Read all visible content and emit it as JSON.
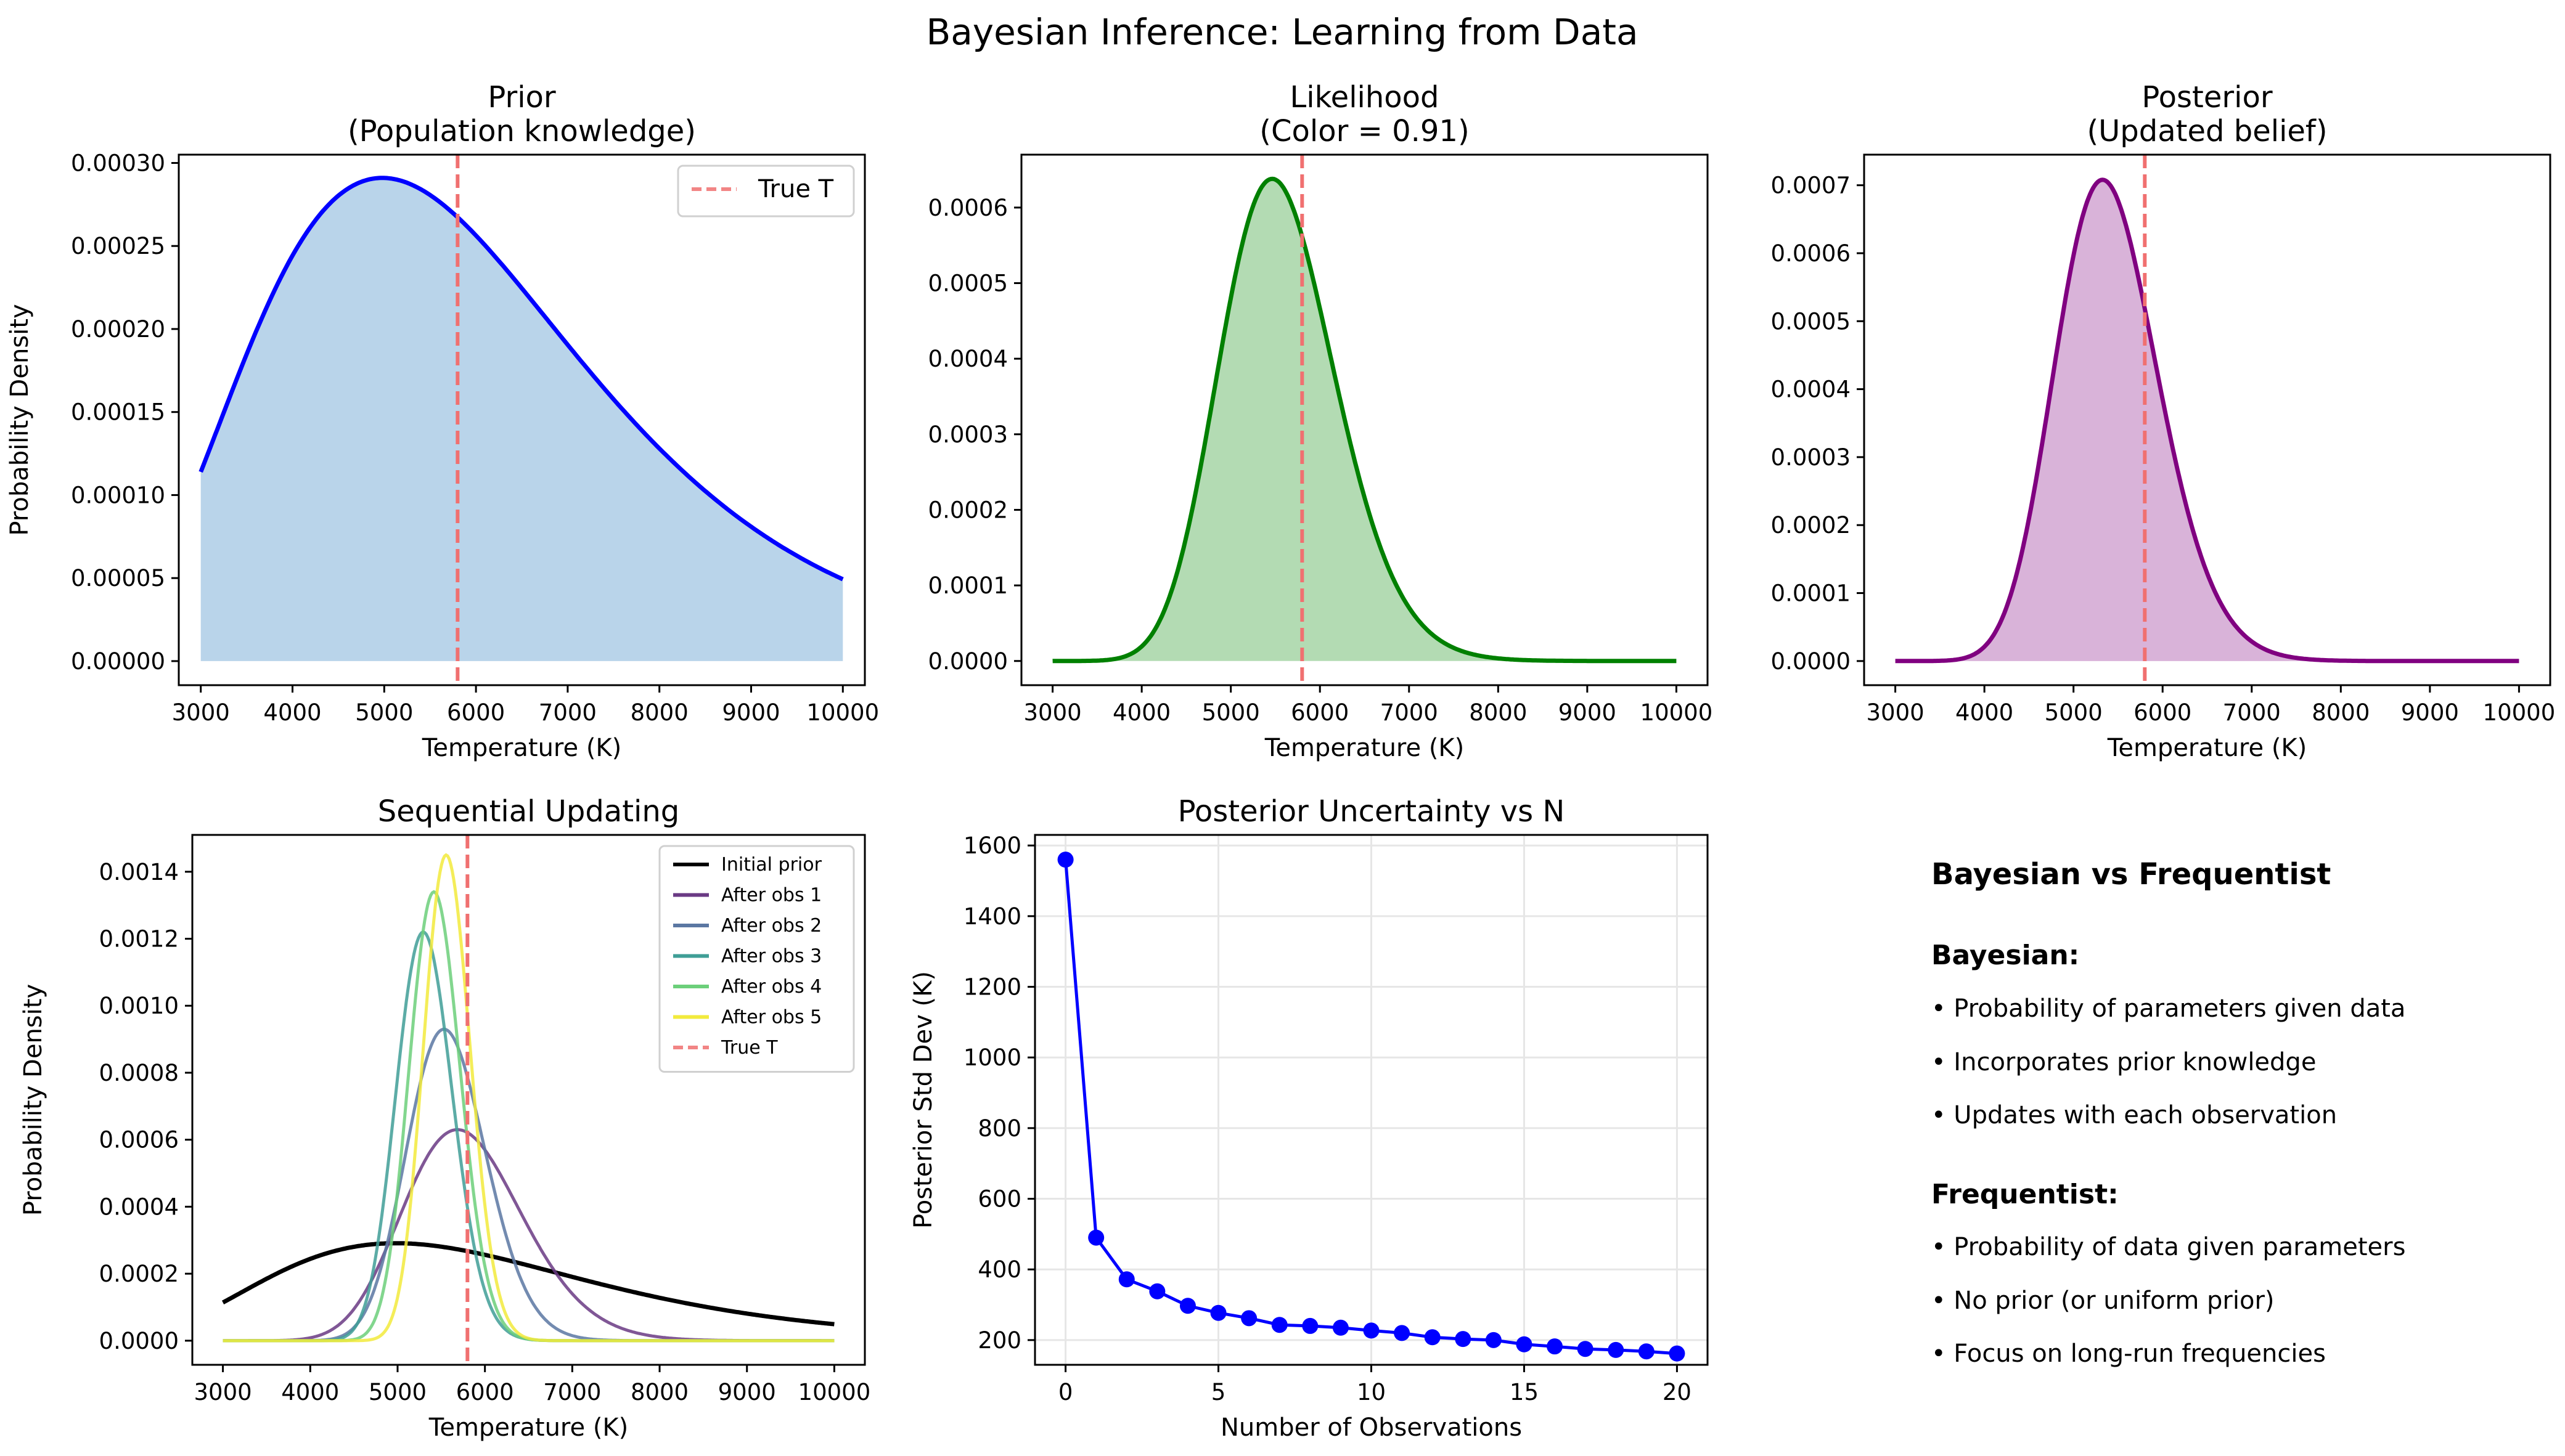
{
  "suptitle": "Bayesian Inference: Learning from Data",
  "colors": {
    "prior": "#0000ff",
    "prior_fill": "#b9d4ea",
    "likelihood": "#008000",
    "likelihood_fill": "#b3dbb3",
    "posterior": "#800080",
    "posterior_fill": "#d9b3d9",
    "true_t": "#f07070",
    "uncertainty": "#0000ff",
    "grid": "#e6e6e6"
  },
  "chart_data": [
    {
      "type": "area",
      "title": "Prior\n(Population knowledge)",
      "xlabel": "Temperature (K)",
      "ylabel": "Probability Density",
      "xlim": [
        2760,
        10240
      ],
      "ylim": [
        -1.45e-05,
        0.000305
      ],
      "xticks": [
        3000,
        4000,
        5000,
        6000,
        7000,
        8000,
        9000,
        10000
      ],
      "yticks": [
        "0.00000",
        "0.00005",
        "0.00010",
        "0.00015",
        "0.00020",
        "0.00025",
        "0.00030"
      ],
      "ytick_values": [
        0,
        5e-05,
        0.0001,
        0.00015,
        0.0002,
        0.00025,
        0.0003
      ],
      "curve": {
        "kind": "lognormal",
        "mu": 8.65,
        "sigma": 0.37,
        "scale": 0.000291,
        "color": "#0000ff"
      },
      "true_t": 5800,
      "legend": [
        {
          "label": "True T",
          "style": "dashed",
          "color": "#f07070"
        }
      ],
      "legend_position": "upper right"
    },
    {
      "type": "area",
      "title": "Likelihood\n(Color = 0.91)",
      "xlabel": "Temperature (K)",
      "ylabel": "",
      "xlim": [
        2650,
        10350
      ],
      "ylim": [
        -3.2e-05,
        0.00067
      ],
      "xticks": [
        3000,
        4000,
        5000,
        6000,
        7000,
        8000,
        9000,
        10000
      ],
      "yticks": [
        "0.0000",
        "0.0001",
        "0.0002",
        "0.0003",
        "0.0004",
        "0.0005",
        "0.0006"
      ],
      "ytick_values": [
        0,
        0.0001,
        0.0002,
        0.0003,
        0.0004,
        0.0005,
        0.0006
      ],
      "curve": {
        "kind": "lognormal",
        "mu": 8.62,
        "sigma": 0.118,
        "scale": 0.000638,
        "color": "#008000"
      },
      "true_t": 5800
    },
    {
      "type": "area",
      "title": "Posterior\n(Updated belief)",
      "xlabel": "Temperature (K)",
      "ylabel": "",
      "xlim": [
        2650,
        10350
      ],
      "ylim": [
        -3.55e-05,
        0.000745
      ],
      "xticks": [
        3000,
        4000,
        5000,
        6000,
        7000,
        8000,
        9000,
        10000
      ],
      "yticks": [
        "0.0000",
        "0.0001",
        "0.0002",
        "0.0003",
        "0.0004",
        "0.0005",
        "0.0006",
        "0.0007"
      ],
      "ytick_values": [
        0,
        0.0001,
        0.0002,
        0.0003,
        0.0004,
        0.0005,
        0.0006,
        0.0007
      ],
      "curve": {
        "kind": "lognormal",
        "mu": 8.592,
        "sigma": 0.108,
        "scale": 0.000708,
        "color": "#800080"
      },
      "true_t": 5800
    },
    {
      "type": "line",
      "title": "Sequential Updating",
      "xlabel": "Temperature (K)",
      "ylabel": "Probability Density",
      "xlim": [
        2650,
        10350
      ],
      "ylim": [
        -7.2e-05,
        0.00151
      ],
      "xticks": [
        3000,
        4000,
        5000,
        6000,
        7000,
        8000,
        9000,
        10000
      ],
      "yticks": [
        "0.0000",
        "0.0002",
        "0.0004",
        "0.0006",
        "0.0008",
        "0.0010",
        "0.0012",
        "0.0014"
      ],
      "ytick_values": [
        0,
        0.0002,
        0.0004,
        0.0006,
        0.0008,
        0.001,
        0.0012,
        0.0014
      ],
      "series": [
        {
          "name": "Initial prior",
          "kind": "lognormal",
          "mu": 8.65,
          "sigma": 0.37,
          "scale": 0.000291,
          "color": "#000000",
          "width": 7
        },
        {
          "name": "After obs 1",
          "kind": "lognormal",
          "mu": 8.66,
          "sigma": 0.12,
          "scale": 0.00063,
          "color": "#6a3a84",
          "width": 5
        },
        {
          "name": "After obs 2",
          "kind": "lognormal",
          "mu": 8.625,
          "sigma": 0.082,
          "scale": 0.00093,
          "color": "#5b77a2",
          "width": 5
        },
        {
          "name": "After obs 3",
          "kind": "lognormal",
          "mu": 8.578,
          "sigma": 0.061,
          "scale": 0.00122,
          "color": "#3f9e96",
          "width": 5
        },
        {
          "name": "After obs 4",
          "kind": "lognormal",
          "mu": 8.6,
          "sigma": 0.054,
          "scale": 0.00134,
          "color": "#6ccf7a",
          "width": 5
        },
        {
          "name": "After obs 5",
          "kind": "lognormal",
          "mu": 8.625,
          "sigma": 0.048,
          "scale": 0.00145,
          "color": "#f2ea3c",
          "width": 5
        }
      ],
      "true_t": 5800,
      "legend": [
        {
          "label": "Initial prior",
          "style": "solid",
          "color": "#000000"
        },
        {
          "label": "After obs 1",
          "style": "solid",
          "color": "#6a3a84"
        },
        {
          "label": "After obs 2",
          "style": "solid",
          "color": "#5b77a2"
        },
        {
          "label": "After obs 3",
          "style": "solid",
          "color": "#3f9e96"
        },
        {
          "label": "After obs 4",
          "style": "solid",
          "color": "#6ccf7a"
        },
        {
          "label": "After obs 5",
          "style": "solid",
          "color": "#f2ea3c"
        },
        {
          "label": "True T",
          "style": "dashed",
          "color": "#f07070"
        }
      ],
      "legend_position": "upper right"
    },
    {
      "type": "line",
      "title": "Posterior Uncertainty vs N",
      "xlabel": "Number of Observations",
      "ylabel": "Posterior Std Dev (K)",
      "xlim": [
        -1,
        21
      ],
      "ylim": [
        130,
        1630
      ],
      "xticks": [
        0,
        5,
        10,
        15,
        20
      ],
      "yticks": [
        "200",
        "400",
        "600",
        "800",
        "1000",
        "1200",
        "1400",
        "1600"
      ],
      "ytick_values": [
        200,
        400,
        600,
        800,
        1000,
        1200,
        1400,
        1600
      ],
      "grid": true,
      "x": [
        0,
        1,
        2,
        3,
        4,
        5,
        6,
        7,
        8,
        9,
        10,
        11,
        12,
        13,
        14,
        15,
        16,
        17,
        18,
        19,
        20
      ],
      "y": [
        1560,
        490,
        372,
        338,
        297,
        277,
        262,
        243,
        240,
        235,
        227,
        220,
        208,
        203,
        200,
        188,
        182,
        175,
        172,
        168,
        162
      ],
      "color": "#0000ff"
    }
  ],
  "info_panel": {
    "heading": "Bayesian vs Frequentist",
    "bayesian_heading": "Bayesian:",
    "bayesian_points": [
      "• Probability of parameters given data",
      "• Incorporates prior knowledge",
      "• Updates with each observation"
    ],
    "frequentist_heading": "Frequentist:",
    "frequentist_points": [
      "• Probability of data given parameters",
      "• No prior (or uniform prior)",
      "• Focus on long-run frequencies"
    ]
  }
}
